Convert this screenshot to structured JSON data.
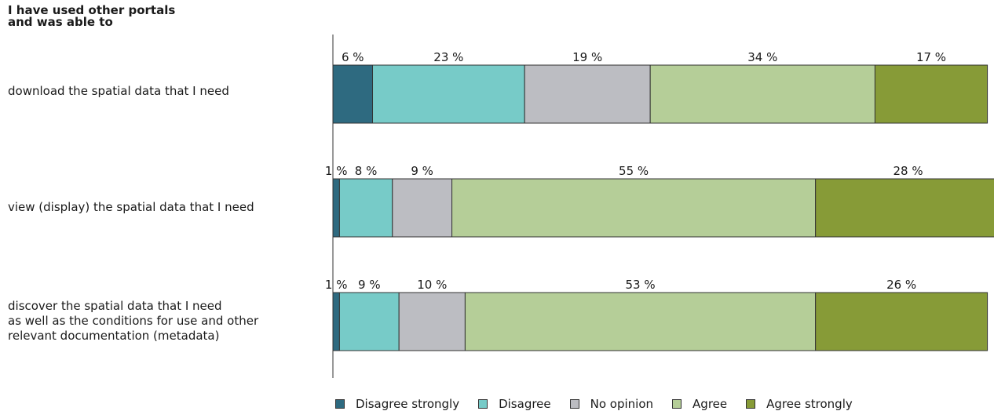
{
  "heading": [
    "I have used other portals",
    "and was able to"
  ],
  "chart_data": {
    "type": "bar",
    "orientation": "horizontal",
    "stacked": true,
    "categories": [
      [
        "download the spatial data that I need"
      ],
      [
        "view (display) the spatial data that I need"
      ],
      [
        "discover the spatial data that I need",
        "as well as the conditions for use and other",
        "relevant documentation (metadata)"
      ]
    ],
    "series": [
      {
        "name": "Disagree strongly",
        "color": "#2e6a80",
        "values": [
          6,
          1,
          1
        ]
      },
      {
        "name": "Disagree",
        "color": "#77cbc8",
        "values": [
          23,
          8,
          9
        ]
      },
      {
        "name": "No opinion",
        "color": "#bcbdc2",
        "values": [
          19,
          9,
          10
        ]
      },
      {
        "name": "Agree",
        "color": "#b5ce98",
        "values": [
          34,
          55,
          53
        ]
      },
      {
        "name": "Agree strongly",
        "color": "#879b37",
        "values": [
          17,
          28,
          26
        ]
      }
    ],
    "unit": "%",
    "grid": false,
    "legend_position": "bottom"
  }
}
